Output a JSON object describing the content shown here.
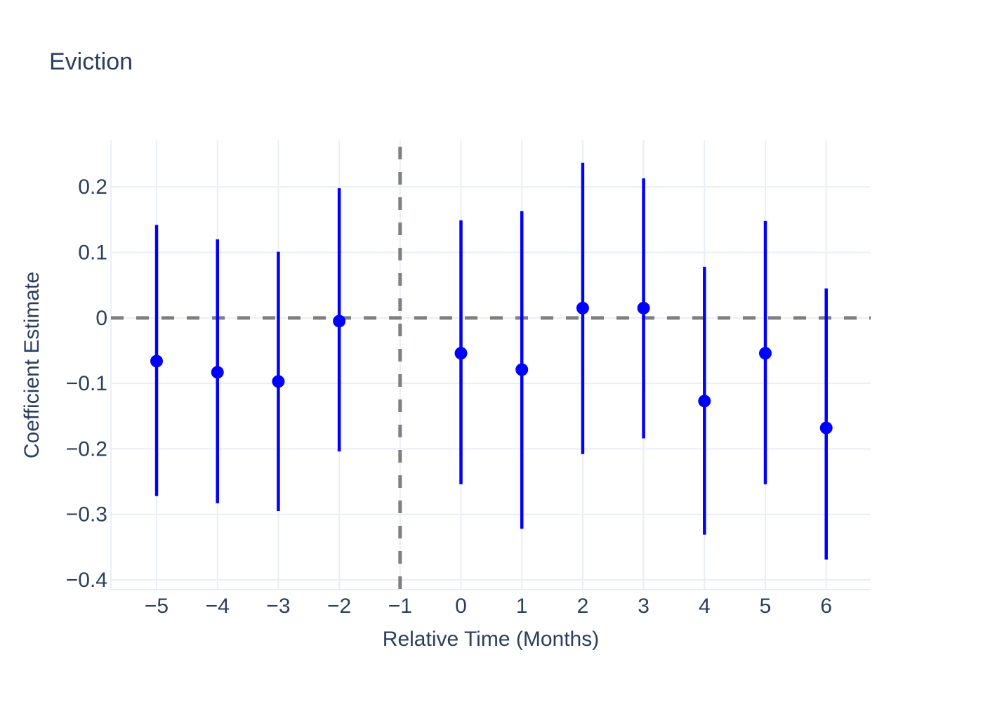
{
  "chart_data": {
    "type": "scatter",
    "title": "Eviction",
    "xlabel": "Relative Time (Months)",
    "ylabel": "Coefficient Estimate",
    "x_tick_values": [
      -5,
      -4,
      -3,
      -2,
      -1,
      0,
      1,
      2,
      3,
      4,
      5,
      6
    ],
    "x_tick_labels": [
      "−5",
      "−4",
      "−3",
      "−2",
      "−1",
      "0",
      "1",
      "2",
      "3",
      "4",
      "5",
      "6"
    ],
    "y_tick_values": [
      0.2,
      0.1,
      0,
      -0.1,
      -0.2,
      -0.3,
      -0.4
    ],
    "y_tick_labels": [
      "0.2",
      "0.1",
      "0",
      "−0.1",
      "−0.2",
      "−0.3",
      "−0.4"
    ],
    "xlim": [
      -5.75,
      6.73
    ],
    "ylim": [
      -0.415,
      0.271
    ],
    "grid": true,
    "legend": false,
    "zero_line_y": 0,
    "reference_line_x": -1,
    "series": [
      {
        "name": "coefficient-estimates",
        "points": [
          {
            "x": -5,
            "y": -0.066,
            "ci_low": -0.272,
            "ci_high": 0.142
          },
          {
            "x": -4,
            "y": -0.083,
            "ci_low": -0.283,
            "ci_high": 0.12
          },
          {
            "x": -3,
            "y": -0.097,
            "ci_low": -0.295,
            "ci_high": 0.101
          },
          {
            "x": -2,
            "y": -0.005,
            "ci_low": -0.204,
            "ci_high": 0.198
          },
          {
            "x": 0,
            "y": -0.054,
            "ci_low": -0.254,
            "ci_high": 0.149
          },
          {
            "x": 1,
            "y": -0.079,
            "ci_low": -0.322,
            "ci_high": 0.163
          },
          {
            "x": 2,
            "y": 0.015,
            "ci_low": -0.208,
            "ci_high": 0.237
          },
          {
            "x": 3,
            "y": 0.015,
            "ci_low": -0.184,
            "ci_high": 0.213
          },
          {
            "x": 4,
            "y": -0.127,
            "ci_low": -0.331,
            "ci_high": 0.078
          },
          {
            "x": 5,
            "y": -0.054,
            "ci_low": -0.254,
            "ci_high": 0.148
          },
          {
            "x": 6,
            "y": -0.168,
            "ci_low": -0.369,
            "ci_high": 0.045
          }
        ]
      }
    ],
    "colors": {
      "marker": "#0000FF",
      "dashed_line": "#7F7F7F",
      "gridline": "#E9EEF6",
      "text": "#2A3F5F",
      "background": "#FFFFFF"
    }
  }
}
